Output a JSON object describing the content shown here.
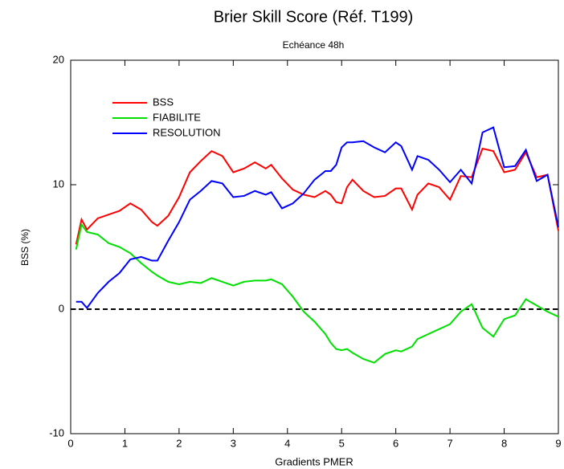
{
  "chart_data": {
    "type": "line",
    "title": "Brier Skill Score (Réf. T199)",
    "subtitle": "Echéance 48h",
    "xlabel": "Gradients PMER",
    "ylabel": "BSS (%)",
    "x": [
      0.1,
      0.2,
      0.3,
      0.5,
      0.7,
      0.9,
      1.1,
      1.3,
      1.5,
      1.6,
      1.8,
      2.0,
      2.2,
      2.4,
      2.6,
      2.8,
      3.0,
      3.2,
      3.4,
      3.6,
      3.7,
      3.9,
      4.1,
      4.3,
      4.5,
      4.7,
      4.8,
      4.9,
      5.0,
      5.1,
      5.2,
      5.4,
      5.6,
      5.8,
      6.0,
      6.1,
      6.3,
      6.4,
      6.6,
      6.8,
      7.0,
      7.2,
      7.4,
      7.6,
      7.8,
      8.0,
      8.2,
      8.4,
      8.6,
      8.8,
      9.0
    ],
    "series": [
      {
        "name": "BSS",
        "color": "#ff0000",
        "values": [
          5.2,
          7.2,
          6.4,
          7.3,
          7.6,
          7.9,
          8.5,
          8.0,
          7.0,
          6.7,
          7.5,
          9.0,
          11.0,
          11.9,
          12.7,
          12.3,
          11.0,
          11.3,
          11.8,
          11.3,
          11.6,
          10.5,
          9.6,
          9.2,
          9.0,
          9.5,
          9.2,
          8.6,
          8.5,
          9.8,
          10.4,
          9.5,
          9.0,
          9.1,
          9.7,
          9.7,
          8.0,
          9.2,
          10.1,
          9.8,
          8.8,
          10.7,
          10.6,
          12.9,
          12.7,
          11.0,
          11.2,
          12.6,
          10.6,
          10.8,
          6.3
        ]
      },
      {
        "name": "FIABILITE",
        "color": "#00e000",
        "values": [
          4.8,
          6.8,
          6.2,
          6.0,
          5.3,
          5.0,
          4.5,
          3.7,
          3.0,
          2.7,
          2.2,
          2.0,
          2.2,
          2.1,
          2.5,
          2.2,
          1.9,
          2.2,
          2.3,
          2.3,
          2.4,
          2.0,
          1.0,
          -0.2,
          -1.0,
          -2.0,
          -2.7,
          -3.2,
          -3.3,
          -3.2,
          -3.5,
          -4.0,
          -4.3,
          -3.6,
          -3.3,
          -3.4,
          -3.0,
          -2.4,
          -2.0,
          -1.6,
          -1.2,
          -0.2,
          0.4,
          -1.5,
          -2.2,
          -0.8,
          -0.5,
          0.8,
          0.3,
          -0.2,
          -0.6
        ]
      },
      {
        "name": "RESOLUTION",
        "color": "#0000ff",
        "values": [
          0.6,
          0.6,
          0.1,
          1.3,
          2.2,
          2.9,
          4.0,
          4.2,
          3.9,
          3.9,
          5.5,
          7.0,
          8.8,
          9.5,
          10.3,
          10.1,
          9.0,
          9.1,
          9.5,
          9.2,
          9.4,
          8.1,
          8.5,
          9.3,
          10.4,
          11.1,
          11.1,
          11.6,
          13.0,
          13.4,
          13.4,
          13.5,
          13.0,
          12.6,
          13.4,
          13.1,
          11.2,
          12.3,
          12.0,
          11.2,
          10.2,
          11.2,
          10.1,
          14.2,
          14.6,
          11.4,
          11.5,
          12.8,
          10.3,
          10.8,
          6.6
        ]
      }
    ],
    "xlim": [
      0,
      9
    ],
    "xticks": [
      0,
      1,
      2,
      3,
      4,
      5,
      6,
      7,
      8,
      9
    ],
    "ylim": [
      -10,
      20
    ],
    "yticks": [
      -10,
      0,
      10,
      20
    ],
    "legend": "upper left"
  }
}
